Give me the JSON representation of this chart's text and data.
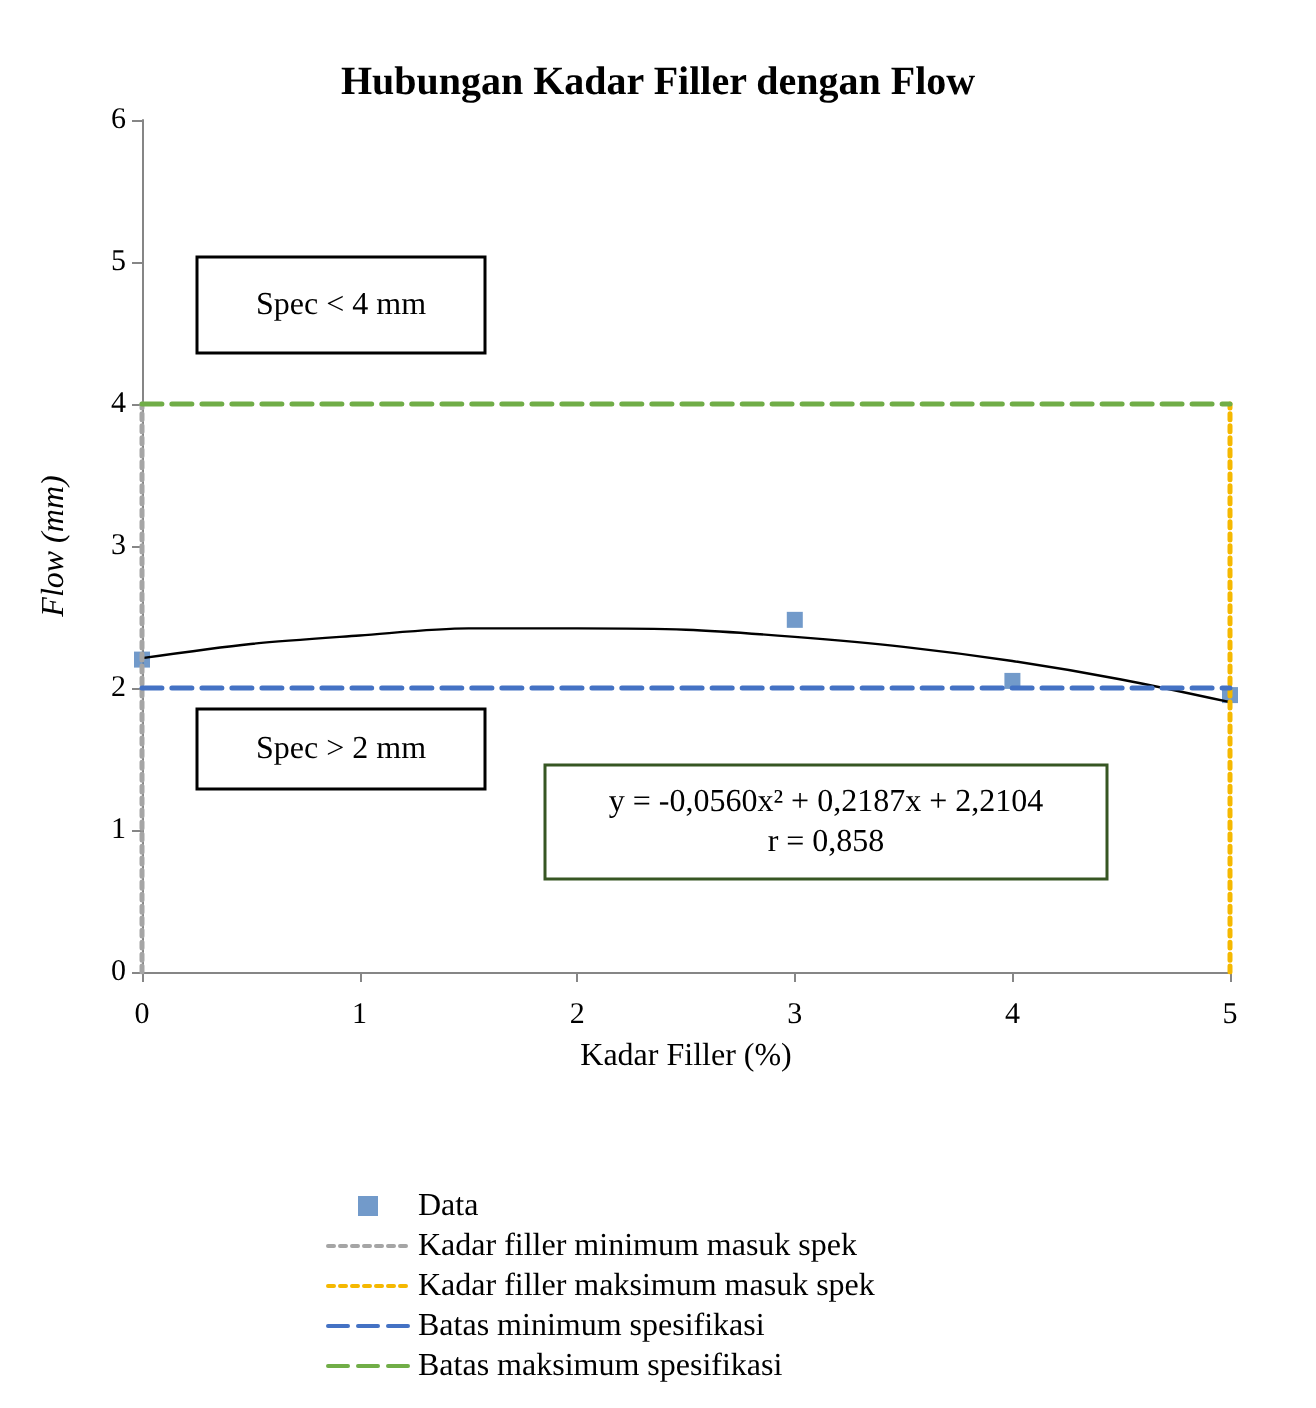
{
  "chart_data": {
    "type": "scatter",
    "title": "Hubungan Kadar Filler dengan Flow",
    "xlabel": "Kadar Filler (%)",
    "ylabel": "Flow (mm)",
    "xlim": [
      0,
      5
    ],
    "xticks": [
      0,
      1,
      2,
      3,
      4,
      5
    ],
    "ylim": [
      0,
      6
    ],
    "yticks": [
      0,
      1,
      2,
      3,
      4,
      5,
      6
    ],
    "grid": false,
    "legend": "bottom",
    "annotations": [
      "Spec < 4 mm",
      "Spec > 2 mm",
      "y = -0,0560x² + 0,2187x + 2,2104\nr = 0,858"
    ],
    "series": [
      {
        "name": "Data",
        "marker": "square",
        "color": "#4f81bd",
        "x": [
          0,
          3,
          4,
          5
        ],
        "values": [
          2.2,
          2.48,
          2.05,
          1.95
        ]
      },
      {
        "type": "line",
        "marker": "none",
        "line_style": "solid",
        "color": "#000000",
        "x": [
          0,
          0.5,
          1,
          1.5,
          2,
          2.5,
          3,
          3.5,
          4,
          4.5,
          5
        ],
        "values": [
          2.21,
          2.31,
          2.37,
          2.42,
          2.42,
          2.41,
          2.36,
          2.29,
          2.19,
          2.06,
          1.9
        ]
      },
      {
        "name": "Kadar filler minimum masuk spek",
        "type": "line",
        "marker": "none",
        "line_style": "dotted",
        "color": "#a5a5a5",
        "x": [
          0,
          0
        ],
        "values": [
          0,
          4
        ]
      },
      {
        "name": "Kadar filler maksimum masuk spek",
        "type": "line",
        "marker": "none",
        "line_style": "dotted",
        "color": "#f5b800",
        "x": [
          5,
          5
        ],
        "values": [
          0,
          4
        ]
      },
      {
        "name": "Batas minimum spesifikasi",
        "type": "line",
        "marker": "none",
        "line_style": "dashed",
        "color": "#4472c4",
        "x": [
          0,
          5
        ],
        "values": [
          2,
          2
        ]
      },
      {
        "name": "Batas maksimum spesifikasi",
        "type": "line",
        "marker": "none",
        "line_style": "dashed",
        "color": "#70ad47",
        "x": [
          0,
          5
        ],
        "values": [
          4,
          4
        ]
      }
    ]
  }
}
